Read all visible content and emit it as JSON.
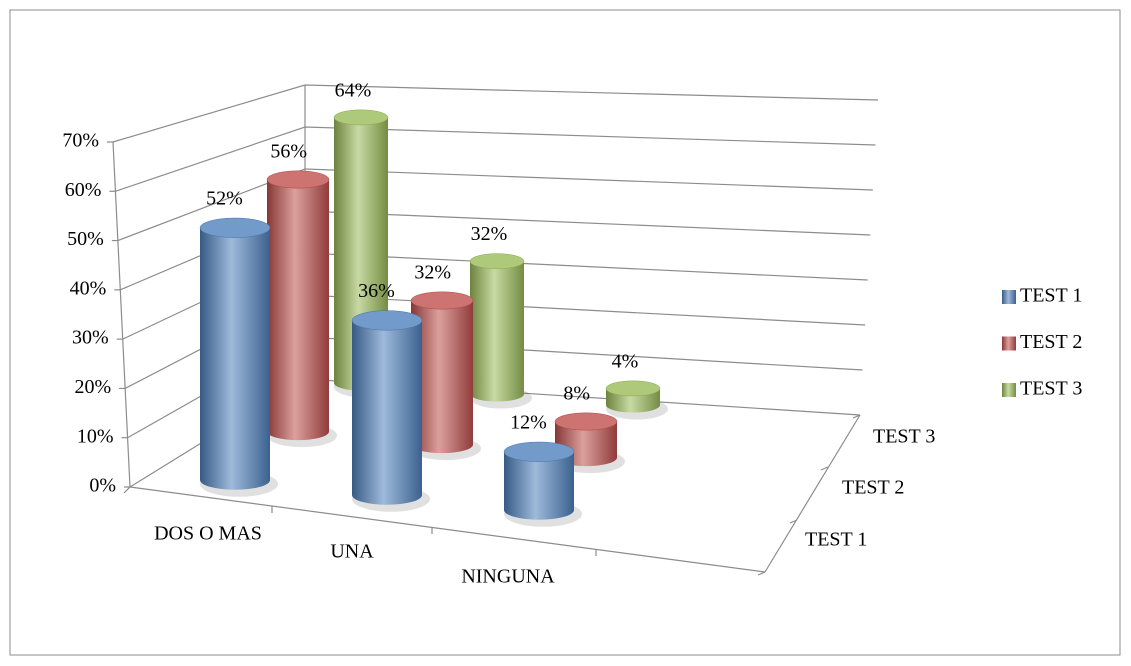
{
  "chart_data": {
    "type": "bar3d",
    "categories": [
      "DOS O MAS",
      "UNA",
      "NINGUNA"
    ],
    "series": [
      {
        "name": "TEST 1",
        "color": "#4f81bd",
        "values": [
          52,
          36,
          12
        ],
        "value_labels": [
          "52%",
          "36%",
          "12%"
        ]
      },
      {
        "name": "TEST 2",
        "color": "#c0504d",
        "values": [
          56,
          32,
          8
        ],
        "value_labels": [
          "56%",
          "32%",
          "8%"
        ]
      },
      {
        "name": "TEST 3",
        "color": "#9bbb59",
        "values": [
          64,
          32,
          4
        ],
        "value_labels": [
          "64%",
          "32%",
          "4%"
        ]
      }
    ],
    "ylim": [
      0,
      70
    ],
    "yticks": [
      {
        "value": 0,
        "label": "0%"
      },
      {
        "value": 10,
        "label": "10%"
      },
      {
        "value": 20,
        "label": "20%"
      },
      {
        "value": 30,
        "label": "30%"
      },
      {
        "value": 40,
        "label": "40%"
      },
      {
        "value": 50,
        "label": "50%"
      },
      {
        "value": 60,
        "label": "60%"
      },
      {
        "value": 70,
        "label": "70%"
      }
    ],
    "grid": true,
    "legend": "right"
  }
}
